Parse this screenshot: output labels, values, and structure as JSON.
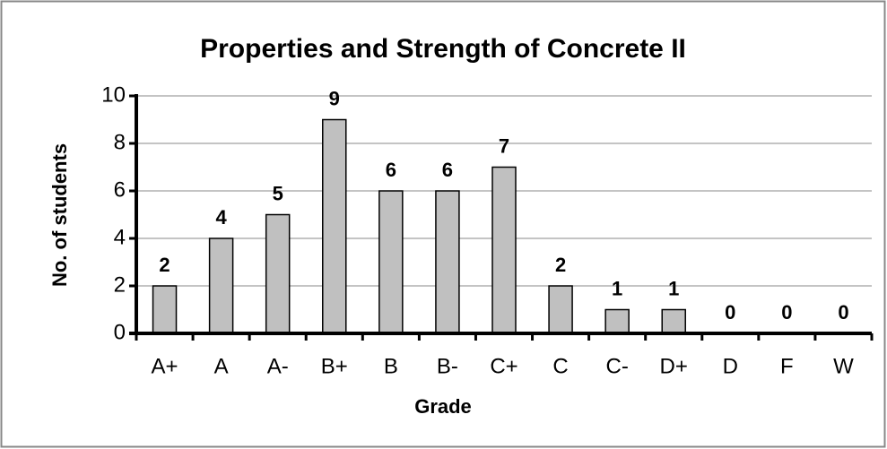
{
  "chart_data": {
    "type": "bar",
    "title": "Properties and Strength of Concrete II",
    "x_label": "Grade",
    "y_label": "No. of students",
    "categories": [
      "A+",
      "A",
      "A-",
      "B+",
      "B",
      "B-",
      "C+",
      "C",
      "C-",
      "D+",
      "D",
      "F",
      "W"
    ],
    "values": [
      2,
      4,
      5,
      9,
      6,
      6,
      7,
      2,
      1,
      1,
      0,
      0,
      0
    ],
    "color": "#c0c0c0",
    "ylim": [
      0,
      10
    ],
    "yticks": [
      0,
      2,
      4,
      6,
      8,
      10
    ],
    "grid": true,
    "data_labels": true
  }
}
